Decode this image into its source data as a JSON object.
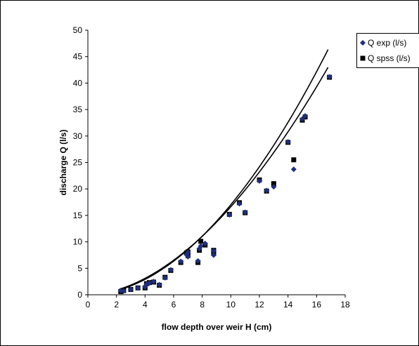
{
  "chart_data": {
    "type": "scatter",
    "xlabel": "flow depth over weir H (cm)",
    "ylabel": "discharge Q (l/s)",
    "xlim": [
      0,
      18
    ],
    "ylim": [
      0,
      50
    ],
    "x_ticks": [
      "0",
      "2",
      "4",
      "6",
      "8",
      "10",
      "12",
      "14",
      "16",
      "18"
    ],
    "y_ticks": [
      "0",
      "5",
      "10",
      "15",
      "20",
      "25",
      "30",
      "35",
      "40",
      "45",
      "50"
    ],
    "grid": false,
    "legend_position": "top-right",
    "series": [
      {
        "name": "Q exp (l/s)",
        "marker": "diamond",
        "color": "#1f2f7a",
        "points": [
          [
            2.3,
            0.8
          ],
          [
            2.5,
            0.7
          ],
          [
            3.0,
            1.0
          ],
          [
            3.5,
            1.3
          ],
          [
            4.0,
            1.5
          ],
          [
            4.1,
            2.0
          ],
          [
            4.3,
            2.2
          ],
          [
            4.6,
            2.5
          ],
          [
            5.0,
            1.9
          ],
          [
            5.4,
            3.2
          ],
          [
            5.8,
            4.7
          ],
          [
            6.5,
            6.3
          ],
          [
            6.9,
            7.6
          ],
          [
            7.0,
            7.2
          ],
          [
            7.0,
            8.0
          ],
          [
            7.7,
            6.4
          ],
          [
            7.8,
            8.7
          ],
          [
            7.9,
            9.2
          ],
          [
            8.2,
            9.7
          ],
          [
            8.8,
            7.5
          ],
          [
            8.8,
            8.3
          ],
          [
            9.9,
            15.1
          ],
          [
            10.6,
            17.2
          ],
          [
            11.0,
            15.6
          ],
          [
            12.0,
            21.5
          ],
          [
            12.5,
            19.7
          ],
          [
            13.0,
            20.4
          ],
          [
            14.0,
            28.9
          ],
          [
            14.4,
            23.7
          ],
          [
            15.0,
            33.2
          ],
          [
            15.2,
            33.8
          ],
          [
            16.9,
            41.2
          ]
        ]
      },
      {
        "name": "Q spss (l/s)",
        "marker": "square",
        "color": "#000000",
        "points": [
          [
            2.3,
            0.6
          ],
          [
            2.5,
            0.8
          ],
          [
            3.0,
            1.0
          ],
          [
            3.5,
            1.3
          ],
          [
            4.0,
            1.3
          ],
          [
            4.1,
            2.1
          ],
          [
            4.3,
            2.3
          ],
          [
            4.6,
            2.4
          ],
          [
            5.0,
            1.8
          ],
          [
            5.4,
            3.3
          ],
          [
            5.8,
            4.6
          ],
          [
            6.5,
            6.1
          ],
          [
            6.9,
            7.9
          ],
          [
            7.0,
            7.4
          ],
          [
            7.0,
            8.1
          ],
          [
            7.7,
            6.1
          ],
          [
            7.8,
            8.4
          ],
          [
            7.9,
            10.1
          ],
          [
            8.2,
            9.4
          ],
          [
            8.8,
            7.8
          ],
          [
            8.8,
            8.4
          ],
          [
            9.9,
            15.2
          ],
          [
            10.6,
            17.4
          ],
          [
            11.0,
            15.5
          ],
          [
            12.0,
            21.7
          ],
          [
            12.5,
            19.6
          ],
          [
            13.0,
            21.0
          ],
          [
            14.0,
            28.8
          ],
          [
            14.4,
            25.5
          ],
          [
            15.0,
            33.0
          ],
          [
            15.2,
            33.6
          ],
          [
            16.9,
            41.1
          ]
        ]
      }
    ],
    "trendlines": [
      {
        "type": "power",
        "color": "#000000",
        "coefficient": 0.246,
        "exponent": 1.83,
        "x_range": [
          2.2,
          16.8
        ]
      },
      {
        "type": "power",
        "color": "#000000",
        "coefficient": 0.2,
        "exponent": 1.93,
        "x_range": [
          2.2,
          16.8
        ]
      }
    ]
  }
}
